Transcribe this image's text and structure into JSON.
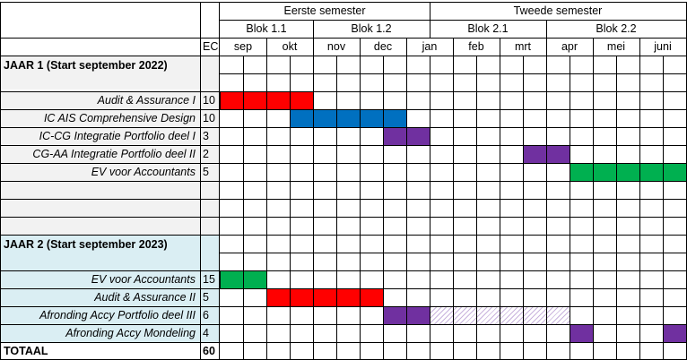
{
  "colors": {
    "red": "#ff0000",
    "blue": "#0070c0",
    "purple": "#7030a0",
    "green": "#00b050",
    "year1_bg": "#f2f2f2",
    "year2_bg": "#daeef3",
    "hatch": "#c9b3dd"
  },
  "header": {
    "semesters": [
      "Eerste semester",
      "Tweede semester"
    ],
    "blocks": [
      "Blok 1.1",
      "Blok 1.2",
      "Blok 2.1",
      "Blok 2.2"
    ],
    "ec_label": "EC",
    "months": [
      "sep",
      "okt",
      "nov",
      "dec",
      "jan",
      "feb",
      "mrt",
      "apr",
      "mei",
      "juni"
    ]
  },
  "years": [
    {
      "title": "JAAR 1 (Start september 2022)",
      "courses": [
        {
          "name": "Audit & Assurance I",
          "ec": "10",
          "color": "red",
          "start": 0,
          "end": 2
        },
        {
          "name": "IC AIS Comprehensive Design",
          "ec": "10",
          "color": "blue",
          "start": 1.5,
          "end": 4
        },
        {
          "name": "IC-CG Integratie Portfolio deel I",
          "ec": "3",
          "color": "purple",
          "start": 3.5,
          "end": 4.5
        },
        {
          "name": "CG-AA Integratie Portfolio deel II",
          "ec": "2",
          "color": "purple",
          "start": 6.5,
          "end": 7.5
        },
        {
          "name": "EV voor Accountants",
          "ec": "5",
          "color": "green",
          "start": 7.5,
          "end": 10
        }
      ]
    },
    {
      "title": "JAAR 2 (Start september 2023)",
      "courses": [
        {
          "name": "EV voor Accountants",
          "ec": "15",
          "color": "green",
          "start": 0,
          "end": 1
        },
        {
          "name": "Audit & Assurance II",
          "ec": "5",
          "color": "red",
          "start": 1,
          "end": 3.5
        },
        {
          "name": "Afronding Accy Portfolio deel III",
          "ec": "6",
          "color": "purple",
          "start": 3.5,
          "end": 4.5,
          "hatch_end": 7.5
        },
        {
          "name": "Afronding Accy Mondeling",
          "ec": "4",
          "color": "purple",
          "start": 7.5,
          "end": 8,
          "extra": [
            9.5,
            10
          ]
        }
      ]
    }
  ],
  "total": {
    "label": "TOTAAL",
    "ec": "60"
  }
}
